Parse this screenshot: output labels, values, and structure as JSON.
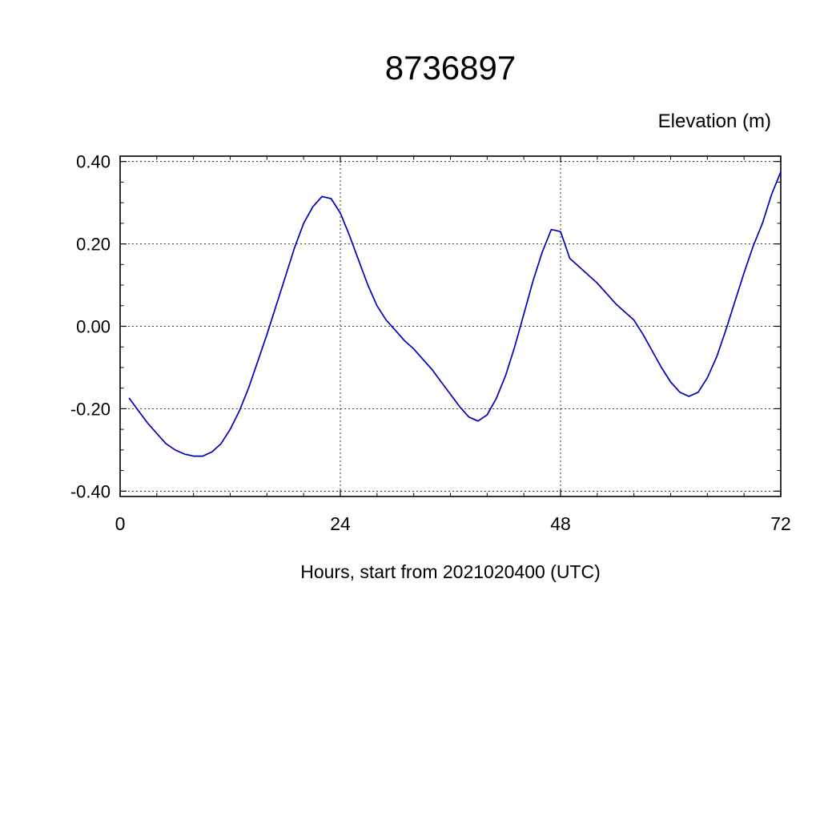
{
  "page": {
    "background": "#ffffff"
  },
  "chart_data": {
    "type": "line",
    "title": "8736897",
    "ylabel": "Elevation (m)",
    "xlabel": "Hours, start from 2021020400 (UTC)",
    "line_color": "#0000bb",
    "axis_color": "#000000",
    "grid": true,
    "grid_style": "dashed",
    "legend": "none",
    "xlim": [
      0,
      72
    ],
    "ylim": [
      -0.413,
      0.413
    ],
    "xticks": {
      "values": [
        0,
        24,
        48,
        72
      ],
      "labels": [
        "0",
        "24",
        "48",
        "72"
      ]
    },
    "yticks": {
      "values": [
        -0.4,
        -0.2,
        0.0,
        0.2,
        0.4
      ],
      "labels": [
        "-0.40",
        "-0.20",
        "0.00",
        "0.20",
        "0.40"
      ]
    },
    "x_minor_step": 4,
    "y_minor_step": 0.05,
    "series": [
      {
        "name": "elevation",
        "x": [
          1,
          2,
          3,
          4,
          5,
          6,
          7,
          8,
          9,
          10,
          11,
          12,
          13,
          14,
          15,
          16,
          17,
          18,
          19,
          20,
          21,
          22,
          23,
          24,
          25,
          26,
          27,
          28,
          29,
          30,
          31,
          32,
          33,
          34,
          35,
          36,
          37,
          38,
          39,
          40,
          41,
          42,
          43,
          44,
          45,
          46,
          47,
          48,
          49,
          50,
          51,
          52,
          53,
          54,
          55,
          56,
          57,
          58,
          59,
          60,
          61,
          62,
          63,
          64,
          65,
          66,
          67,
          68,
          69,
          70,
          71,
          72
        ],
        "y": [
          -0.175,
          -0.205,
          -0.235,
          -0.26,
          -0.285,
          -0.3,
          -0.31,
          -0.315,
          -0.315,
          -0.305,
          -0.285,
          -0.25,
          -0.205,
          -0.15,
          -0.085,
          -0.02,
          0.05,
          0.12,
          0.19,
          0.25,
          0.29,
          0.315,
          0.31,
          0.275,
          0.22,
          0.16,
          0.1,
          0.05,
          0.015,
          -0.01,
          -0.035,
          -0.055,
          -0.08,
          -0.105,
          -0.135,
          -0.165,
          -0.195,
          -0.22,
          -0.23,
          -0.215,
          -0.175,
          -0.12,
          -0.05,
          0.03,
          0.11,
          0.18,
          0.235,
          0.23,
          0.165,
          0.145,
          0.125,
          0.105,
          0.08,
          0.055,
          0.035,
          0.015,
          -0.02,
          -0.06,
          -0.1,
          -0.135,
          -0.16,
          -0.17,
          -0.16,
          -0.125,
          -0.075,
          -0.01,
          0.06,
          0.13,
          0.195,
          0.25,
          0.32,
          0.375
        ]
      }
    ]
  }
}
